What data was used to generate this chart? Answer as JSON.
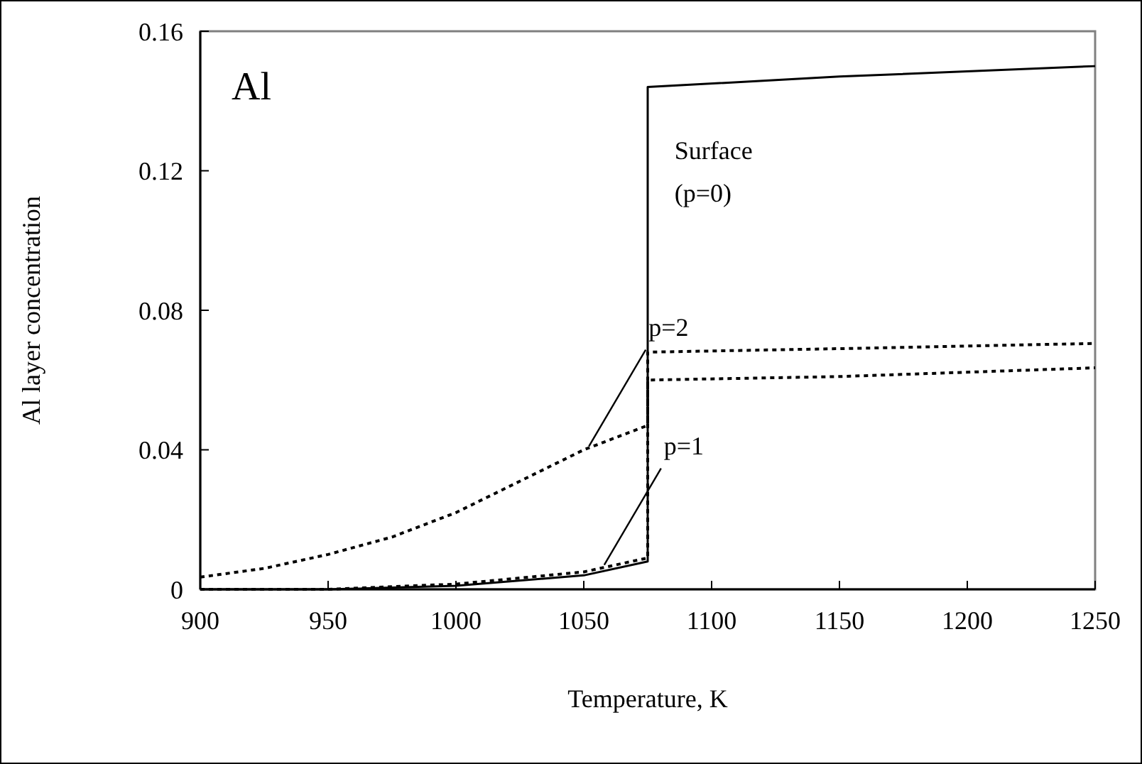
{
  "chart_data": {
    "type": "line",
    "title": "Al",
    "xlabel": "Temperature, K",
    "ylabel": "Al layer concentration",
    "xlim": [
      900,
      1250
    ],
    "xticks": [
      900,
      950,
      1000,
      1050,
      1100,
      1150,
      1200,
      1250
    ],
    "ylim": [
      0,
      0.16
    ],
    "yticks": [
      0,
      0.04,
      0.08,
      0.12,
      0.16
    ],
    "marker": "none",
    "series": [
      {
        "color": "#000000",
        "line_style": "solid",
        "x": [
          900,
          950,
          1000,
          1050,
          1075,
          1075,
          1150,
          1250
        ],
        "values": [
          0,
          0,
          0.001,
          0.004,
          0.008,
          0.144,
          0.147,
          0.15
        ]
      },
      {
        "color": "#000000",
        "line_style": "dotted",
        "x": [
          900,
          925,
          950,
          975,
          1000,
          1025,
          1050,
          1075,
          1075,
          1150,
          1250
        ],
        "values": [
          0.0035,
          0.006,
          0.01,
          0.015,
          0.022,
          0.031,
          0.04,
          0.047,
          0.068,
          0.069,
          0.0705
        ]
      },
      {
        "color": "#000000",
        "line_style": "dotted",
        "x": [
          900,
          950,
          1000,
          1050,
          1075,
          1075,
          1150,
          1250
        ],
        "values": [
          0,
          0,
          0.0015,
          0.005,
          0.009,
          0.06,
          0.061,
          0.0635
        ]
      }
    ],
    "annotations": [
      "Surface (p=0)",
      {
        "text": "p=2",
        "x": 1052,
        "y": 0.041
      },
      {
        "text": "p=1",
        "x": 1058,
        "y": 0.007
      }
    ]
  }
}
